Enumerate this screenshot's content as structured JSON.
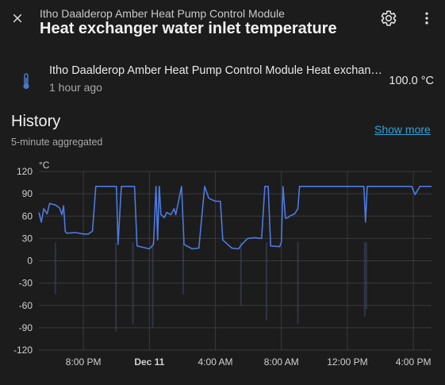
{
  "header": {
    "subtitle": "Itho Daalderop Amber Heat Pump Control Module",
    "title": "Heat exchanger water inlet temperature"
  },
  "entity": {
    "name": "Itho Daalderop Amber Heat Pump Control Module Heat exchanger water inlet temperature",
    "last_changed": "1 hour ago",
    "value": "100.0 °C",
    "icon": "thermometer-icon"
  },
  "history": {
    "title": "History",
    "subtitle": "5-minute aggregated",
    "show_more": "Show more"
  },
  "colors": {
    "accent": "#2fa4d8",
    "line": "#4d7ae0"
  },
  "chart_data": {
    "type": "line",
    "unit_label": "°C",
    "ylim": [
      -120,
      120
    ],
    "y_ticks": [
      "120",
      "90",
      "60",
      "30",
      "0",
      "-30",
      "-60",
      "-90",
      "-120"
    ],
    "x_ticks": [
      "8:00 PM",
      "Dec 11",
      "4:00 AM",
      "8:00 AM",
      "12:00 PM",
      "4:00 PM"
    ],
    "x_range_hours": [
      17.3,
      41.1
    ],
    "series": [
      {
        "values": [
          [
            17.3,
            65
          ],
          [
            17.45,
            52
          ],
          [
            17.6,
            70
          ],
          [
            17.8,
            63
          ],
          [
            17.95,
            77
          ],
          [
            18.3,
            75
          ],
          [
            18.55,
            71
          ],
          [
            18.7,
            62
          ],
          [
            18.8,
            74
          ],
          [
            18.9,
            39
          ],
          [
            19.0,
            37
          ],
          [
            19.5,
            38
          ],
          [
            20.0,
            36
          ],
          [
            20.3,
            36
          ],
          [
            20.55,
            40
          ],
          [
            20.75,
            100
          ],
          [
            22.0,
            100
          ],
          [
            22.1,
            22
          ],
          [
            22.3,
            100
          ],
          [
            23.1,
            100
          ],
          [
            23.25,
            20
          ],
          [
            24.0,
            16
          ],
          [
            24.25,
            22
          ],
          [
            24.4,
            100
          ],
          [
            24.5,
            28
          ],
          [
            24.6,
            100
          ],
          [
            24.7,
            62
          ],
          [
            24.9,
            58
          ],
          [
            25.05,
            65
          ],
          [
            25.3,
            62
          ],
          [
            25.5,
            70
          ],
          [
            25.6,
            62
          ],
          [
            25.95,
            100
          ],
          [
            26.1,
            22
          ],
          [
            26.6,
            16
          ],
          [
            27.0,
            17
          ],
          [
            27.35,
            100
          ],
          [
            27.6,
            84
          ],
          [
            28.0,
            80
          ],
          [
            28.3,
            80
          ],
          [
            28.45,
            28
          ],
          [
            29.0,
            17
          ],
          [
            29.4,
            16
          ],
          [
            29.6,
            22
          ],
          [
            29.95,
            30
          ],
          [
            30.4,
            31
          ],
          [
            30.8,
            30
          ],
          [
            31.0,
            100
          ],
          [
            31.2,
            100
          ],
          [
            31.35,
            20
          ],
          [
            31.9,
            19
          ],
          [
            32.0,
            25
          ],
          [
            32.1,
            100
          ],
          [
            32.25,
            57
          ],
          [
            32.4,
            58
          ],
          [
            32.5,
            60
          ],
          [
            32.8,
            63
          ],
          [
            33.0,
            70
          ],
          [
            33.1,
            100
          ],
          [
            37.0,
            100
          ],
          [
            37.1,
            52
          ],
          [
            37.2,
            100
          ],
          [
            39.9,
            100
          ],
          [
            40.1,
            89
          ],
          [
            40.4,
            100
          ],
          [
            41.1,
            100
          ]
        ]
      }
    ]
  }
}
